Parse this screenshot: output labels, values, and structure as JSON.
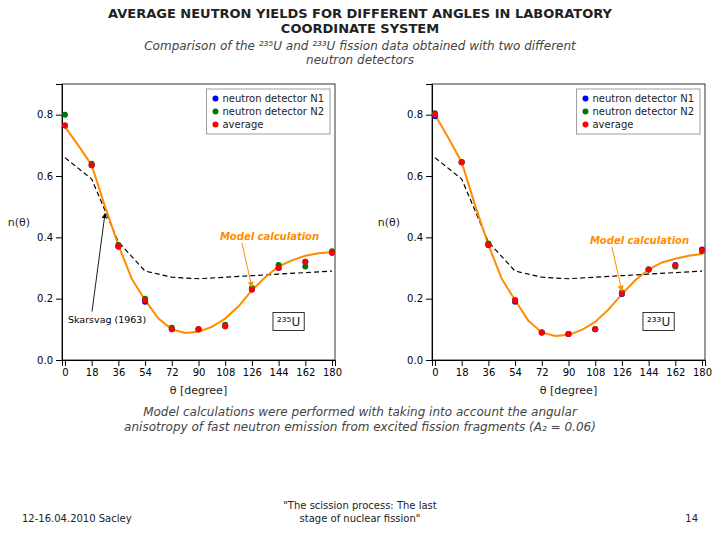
{
  "chart_data": [
    {
      "type": "line",
      "title": [
        "AVERAGE NEUTRON YIELDS FOR DIFFERENT ANGLES IN LABORATORY",
        "COORDINATE SYSTEM"
      ],
      "subtitle": [
        "Comparison of the ²³⁵U and ²³³U fission data obtained with two different",
        "neutron detectors"
      ],
      "xlabel": "θ [degree]",
      "ylabel": "n(θ)",
      "xlim": [
        -2,
        182
      ],
      "xticks": [
        0,
        18,
        36,
        54,
        72,
        90,
        108,
        126,
        144,
        162,
        180
      ],
      "ylim": [
        0,
        0.9
      ],
      "yticks": [
        {
          "value": 0,
          "label": "0.0"
        },
        0.2,
        0.4,
        0.6,
        0.8
      ],
      "grid": false,
      "legend": "upper right",
      "annotations": [
        "Model calculation",
        "Skarsvag (1963)",
        "²³⁵U",
        [
          "Model calculations were performed with taking into account the angular",
          "anisotropy of fast neutron emission from excited fission fragments (A₂ = 0.06)"
        ],
        "12-16.04.2010  Sacley",
        [
          "\"The scission process: The last",
          "stage of nuclear fission\""
        ],
        "14"
      ],
      "series": [
        {
          "type": "line",
          "color": "#000000",
          "line_style": "dashed",
          "x": [
            0,
            18,
            36,
            54,
            72,
            90,
            108,
            126,
            144,
            162,
            180
          ],
          "values": [
            0.66,
            0.59,
            0.385,
            0.29,
            0.27,
            0.265,
            0.27,
            0.275,
            0.28,
            0.285,
            0.29
          ]
        },
        {
          "type": "line",
          "color": "#ff8c00",
          "line_style": "solid",
          "x": [
            0,
            9,
            18,
            27,
            36,
            45,
            54,
            63,
            72,
            81,
            90,
            99,
            108,
            117,
            126,
            135,
            144,
            153,
            162,
            171,
            180
          ],
          "values": [
            0.76,
            0.7,
            0.635,
            0.5,
            0.375,
            0.265,
            0.195,
            0.135,
            0.1,
            0.088,
            0.092,
            0.108,
            0.135,
            0.175,
            0.228,
            0.27,
            0.305,
            0.325,
            0.34,
            0.348,
            0.352
          ]
        },
        {
          "type": "scatter",
          "name": "neutron detector N1",
          "color": "#0000ff",
          "marker": "circle",
          "x": [
            0,
            18,
            36,
            54,
            72,
            90,
            108,
            126,
            144,
            162,
            180
          ],
          "values": [
            0.765,
            0.635,
            0.37,
            0.19,
            0.1,
            0.1,
            0.11,
            0.23,
            0.3,
            0.32,
            0.35
          ]
        },
        {
          "type": "scatter",
          "name": "neutron detector N2",
          "color": "#007700",
          "marker": "circle",
          "x": [
            0,
            18,
            36,
            54,
            72,
            90,
            108,
            126,
            144,
            162,
            180
          ],
          "values": [
            0.8,
            0.64,
            0.375,
            0.2,
            0.105,
            0.1,
            0.115,
            0.235,
            0.31,
            0.305,
            0.355
          ]
        },
        {
          "type": "scatter",
          "name": "average",
          "color": "#ff0000",
          "marker": "circle",
          "x": [
            0,
            18,
            36,
            54,
            72,
            90,
            108,
            126,
            144,
            162,
            180
          ],
          "values": [
            0.765,
            0.635,
            0.37,
            0.195,
            0.1,
            0.1,
            0.11,
            0.23,
            0.3,
            0.32,
            0.35
          ]
        }
      ]
    },
    {
      "type": "line",
      "xlabel": "θ [degree]",
      "ylabel": "n(θ)",
      "xlim": [
        -2,
        182
      ],
      "xticks": [
        0,
        18,
        36,
        54,
        72,
        90,
        108,
        126,
        144,
        162,
        180
      ],
      "ylim": [
        0,
        0.9
      ],
      "yticks": [
        {
          "value": 0,
          "label": "0.0"
        },
        0.2,
        0.4,
        0.6,
        0.8
      ],
      "grid": false,
      "legend": "upper right",
      "annotations": [
        "Model calculation",
        "²³³U"
      ],
      "series": [
        {
          "type": "line",
          "color": "#000000",
          "line_style": "dashed",
          "x": [
            0,
            18,
            36,
            54,
            72,
            90,
            108,
            126,
            144,
            162,
            180
          ],
          "values": [
            0.66,
            0.59,
            0.385,
            0.29,
            0.27,
            0.265,
            0.27,
            0.275,
            0.28,
            0.285,
            0.29
          ]
        },
        {
          "type": "line",
          "color": "#ff8c00",
          "line_style": "solid",
          "x": [
            0,
            9,
            18,
            27,
            36,
            45,
            54,
            63,
            72,
            81,
            90,
            99,
            108,
            117,
            126,
            135,
            144,
            153,
            162,
            171,
            180
          ],
          "values": [
            0.8,
            0.725,
            0.645,
            0.505,
            0.375,
            0.265,
            0.195,
            0.128,
            0.09,
            0.078,
            0.082,
            0.098,
            0.124,
            0.165,
            0.215,
            0.26,
            0.295,
            0.318,
            0.33,
            0.34,
            0.346
          ]
        },
        {
          "type": "scatter",
          "name": "neutron detector N1",
          "color": "#0000ff",
          "marker": "circle",
          "x": [
            0,
            18,
            36,
            54,
            72,
            90,
            108,
            126,
            144,
            162,
            180
          ],
          "values": [
            0.795,
            0.645,
            0.375,
            0.19,
            0.09,
            0.085,
            0.1,
            0.215,
            0.295,
            0.31,
            0.36
          ]
        },
        {
          "type": "scatter",
          "name": "neutron detector N2",
          "color": "#007700",
          "marker": "circle",
          "x": [
            0,
            18,
            36,
            54,
            72,
            90,
            108,
            126,
            144,
            162,
            180
          ],
          "values": [
            0.805,
            0.645,
            0.38,
            0.195,
            0.09,
            0.085,
            0.1,
            0.22,
            0.295,
            0.305,
            0.355
          ]
        },
        {
          "type": "scatter",
          "name": "average",
          "color": "#ff0000",
          "marker": "circle",
          "x": [
            0,
            18,
            36,
            54,
            72,
            90,
            108,
            126,
            144,
            162,
            180
          ],
          "values": [
            0.8,
            0.645,
            0.375,
            0.195,
            0.09,
            0.085,
            0.1,
            0.218,
            0.295,
            0.308,
            0.358
          ]
        }
      ]
    }
  ]
}
